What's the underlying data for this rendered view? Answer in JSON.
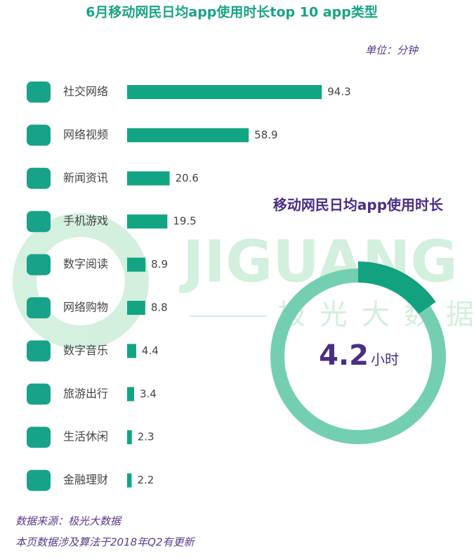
{
  "chart_data": {
    "type": "bar",
    "title": "6月移动网民日均app使用时长top 10 app类型",
    "unit": "单位：分钟",
    "categories": [
      "社交网络",
      "网络视频",
      "新闻资讯",
      "手机游戏",
      "数字阅读",
      "网络购物",
      "数字音乐",
      "旅游出行",
      "生活休闲",
      "金融理财"
    ],
    "values": [
      94.3,
      58.9,
      20.6,
      19.5,
      8.9,
      8.8,
      4.4,
      3.4,
      2.3,
      2.2
    ],
    "color": "#12a584",
    "summary": {
      "title": "移动网民日均app使用时长",
      "value": 4.2,
      "unit": "小时"
    },
    "watermark": {
      "brand": "JIGUANG",
      "name": "极光大数据"
    },
    "notes": [
      "数据来源：极光大数据",
      "本页数据涉及算法于2018年Q2有更新"
    ]
  }
}
